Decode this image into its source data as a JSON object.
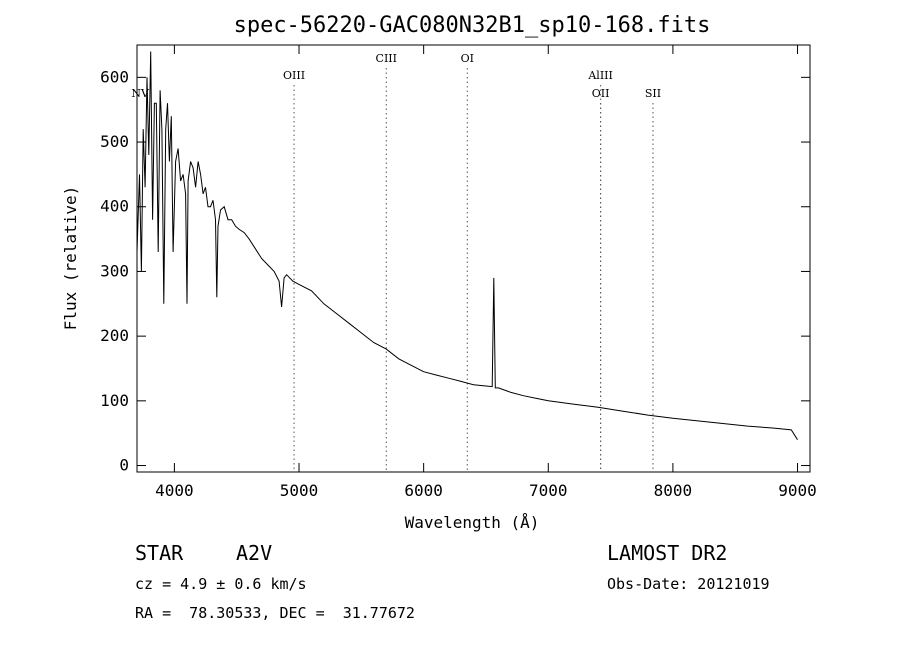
{
  "chart_data": {
    "type": "line",
    "title": "spec-56220-GAC080N32B1_sp10-168.fits",
    "xlabel": "Wavelength (Å)",
    "ylabel": "Flux (relative)",
    "xlim": [
      3700,
      9100
    ],
    "ylim": [
      -10,
      650
    ],
    "x_ticks": [
      4000,
      5000,
      6000,
      7000,
      8000,
      9000
    ],
    "y_ticks": [
      0,
      100,
      200,
      300,
      400,
      500,
      600
    ],
    "grid": false,
    "series": [
      {
        "x": [
          3700,
          3720,
          3735,
          3750,
          3765,
          3780,
          3795,
          3810,
          3825,
          3840,
          3855,
          3870,
          3885,
          3900,
          3915,
          3930,
          3945,
          3960,
          3975,
          3990,
          4010,
          4030,
          4050,
          4070,
          4090,
          4101,
          4110,
          4130,
          4150,
          4170,
          4190,
          4210,
          4230,
          4250,
          4270,
          4290,
          4310,
          4330,
          4340,
          4350,
          4370,
          4400,
          4430,
          4460,
          4490,
          4520,
          4560,
          4600,
          4650,
          4700,
          4750,
          4800,
          4840,
          4860,
          4880,
          4900,
          4950,
          5000,
          5100,
          5200,
          5300,
          5400,
          5500,
          5600,
          5700,
          5800,
          5900,
          6000,
          6100,
          6200,
          6300,
          6400,
          6500,
          6550,
          6563,
          6575,
          6600,
          6700,
          6800,
          6900,
          7000,
          7200,
          7400,
          7600,
          7800,
          8000,
          8200,
          8400,
          8600,
          8800,
          8950,
          9000
        ],
        "y": [
          330,
          450,
          300,
          520,
          430,
          600,
          480,
          640,
          380,
          560,
          560,
          330,
          580,
          520,
          250,
          520,
          560,
          470,
          540,
          330,
          470,
          490,
          440,
          450,
          420,
          250,
          440,
          470,
          460,
          430,
          470,
          450,
          420,
          430,
          400,
          400,
          410,
          380,
          260,
          370,
          395,
          400,
          380,
          380,
          370,
          365,
          360,
          350,
          335,
          320,
          310,
          300,
          285,
          245,
          290,
          295,
          285,
          280,
          270,
          250,
          235,
          220,
          205,
          190,
          180,
          165,
          155,
          145,
          140,
          135,
          130,
          125,
          123,
          122,
          290,
          120,
          120,
          113,
          108,
          104,
          100,
          95,
          90,
          84,
          78,
          73,
          69,
          65,
          61,
          58,
          55,
          40
        ]
      }
    ],
    "annotations": [
      {
        "label": "NV",
        "x": 3725,
        "row": "low"
      },
      {
        "label": "OIII",
        "x": 4960,
        "row": "mid"
      },
      {
        "label": "CIII",
        "x": 5700,
        "row": "high"
      },
      {
        "label": "OI",
        "x": 6350,
        "row": "high"
      },
      {
        "label": "AlIII",
        "x": 7420,
        "row": "mid"
      },
      {
        "label": "OII",
        "x": 7420,
        "row": "low"
      },
      {
        "label": "SII",
        "x": 7840,
        "row": "low"
      }
    ]
  },
  "info": {
    "object_type": "STAR",
    "subclass": "A2V",
    "survey": "LAMOST DR2",
    "cz": "cz = 4.9 ± 0.6 km/s",
    "obs_date": "Obs-Date: 20121019",
    "coords": "RA =  78.30533, DEC =  31.77672"
  }
}
